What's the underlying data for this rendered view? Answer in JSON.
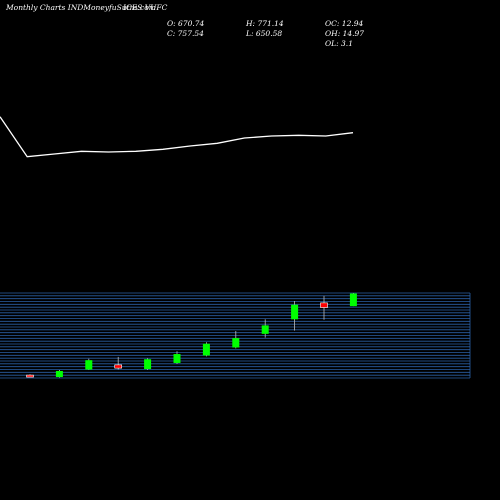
{
  "header": {
    "site": "Monthly Charts INDMoneyfuSutra.com",
    "symbol": "ICES VUFC",
    "open": "O: 670.74",
    "close": "C: 757.54",
    "high": "H: 771.14",
    "low": "L: 650.58",
    "oc": "OC: 12.94",
    "oh": "OH: 14.97",
    "ol": "OL: 3.1"
  },
  "colors": {
    "background": "#000000",
    "up": "#00ff00",
    "down": "#ff0000",
    "grid": "#2a5fa5",
    "line": "#ffffff",
    "text": "#ffffff"
  },
  "chart_data": {
    "type": "candlestick",
    "timeframe": "Monthly",
    "candles": [
      {
        "o": 0.62,
        "c": 0.4,
        "h": 0.8,
        "l": 0.2
      },
      {
        "o": 0.2,
        "c": 1.5,
        "h": 1.7,
        "l": 0.1
      },
      {
        "o": 1.8,
        "c": 3.8,
        "h": 4.1,
        "l": 1.7
      },
      {
        "o": 2.8,
        "c": 2.1,
        "h": 4.5,
        "l": 1.8
      },
      {
        "o": 1.9,
        "c": 4.0,
        "h": 4.2,
        "l": 1.7
      },
      {
        "o": 3.2,
        "c": 5.1,
        "h": 5.7,
        "l": 3.0
      },
      {
        "o": 4.8,
        "c": 7.3,
        "h": 7.6,
        "l": 4.6
      },
      {
        "o": 6.5,
        "c": 8.5,
        "h": 10.0,
        "l": 6.3
      },
      {
        "o": 9.4,
        "c": 11.2,
        "h": 12.5,
        "l": 8.6
      },
      {
        "o": 12.5,
        "c": 15.6,
        "h": 16.4,
        "l": 10.1
      },
      {
        "o": 16.0,
        "c": 15.0,
        "h": 17.5,
        "l": 12.4
      },
      {
        "o": 15.3,
        "c": 18.0,
        "h": 18.1,
        "l": 15.3
      }
    ],
    "moving_average": [
      30.0,
      27.0,
      27.2,
      27.4,
      27.35,
      27.4,
      27.55,
      27.8,
      28.0,
      28.4,
      28.55,
      28.6,
      28.55,
      28.8
    ],
    "price_axis": {
      "min": 0,
      "max": 18.1
    },
    "price_tick_labels": []
  }
}
